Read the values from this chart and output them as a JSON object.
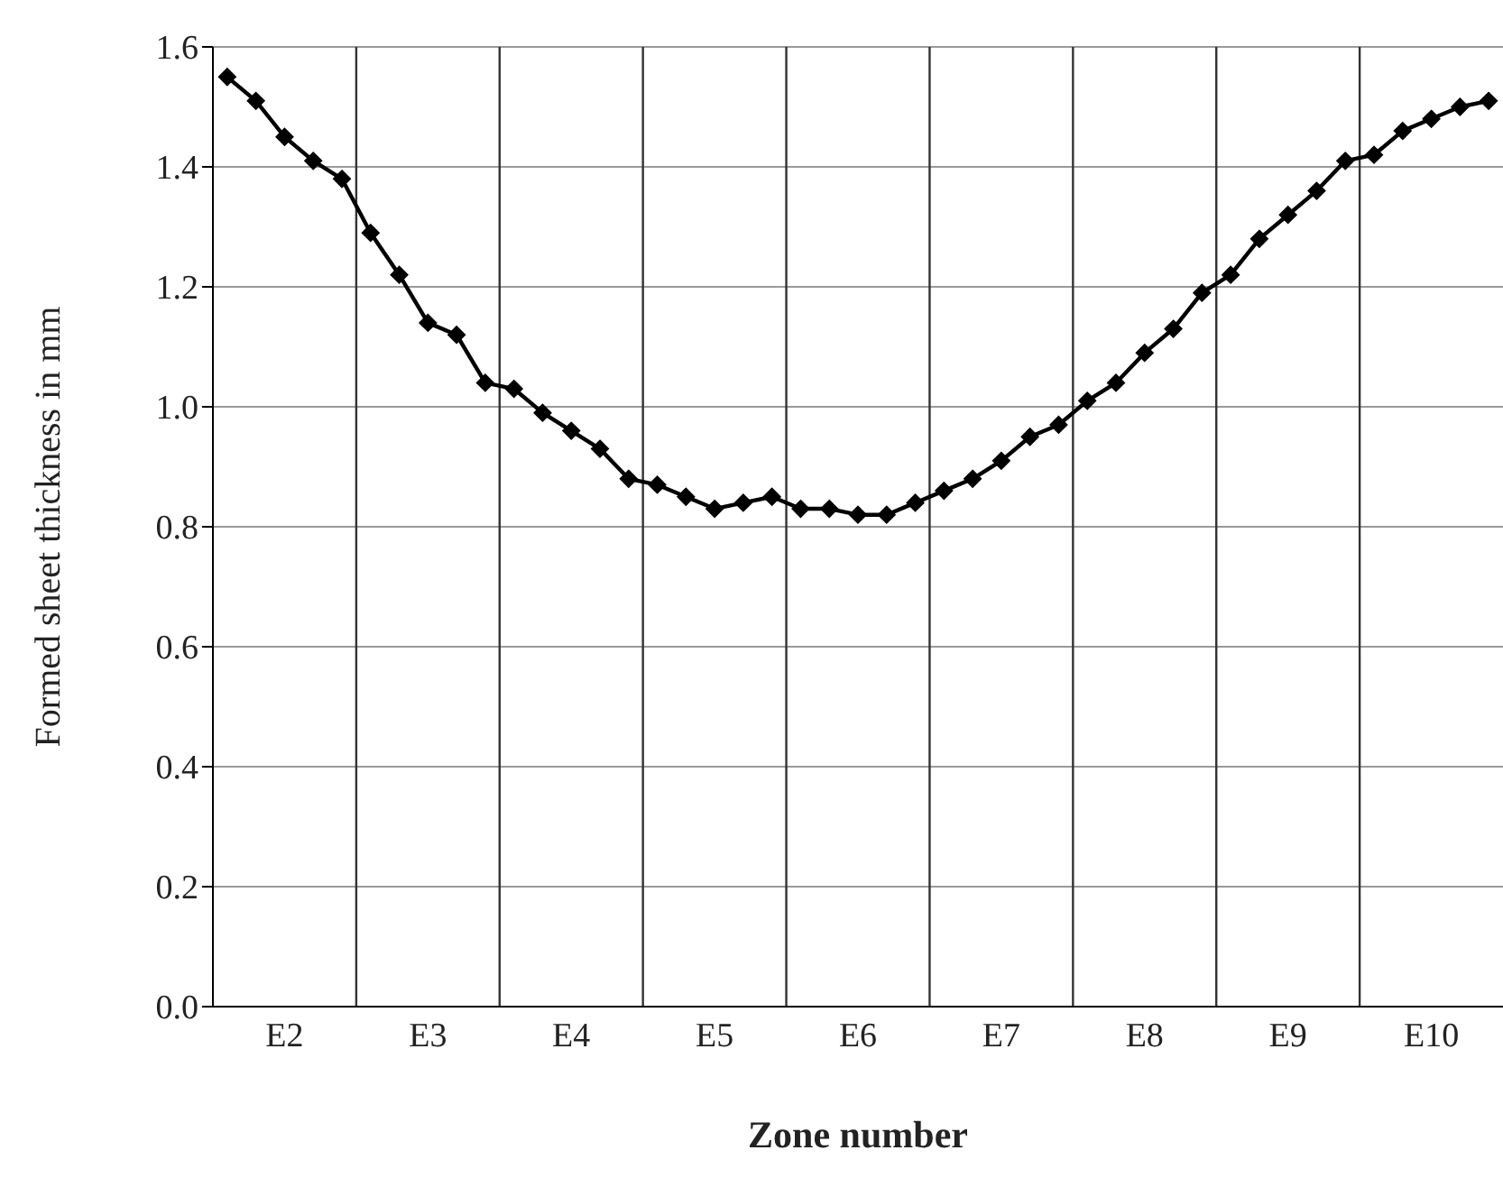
{
  "chart_data": {
    "type": "line",
    "xlabel": "Zone number",
    "ylabel": "Formed sheet thickness in mm",
    "categories": [
      null,
      null,
      "E2",
      null,
      null,
      null,
      null,
      "E3",
      null,
      null,
      null,
      null,
      "E4",
      null,
      null,
      null,
      null,
      "E5",
      null,
      null,
      null,
      null,
      "E6",
      null,
      null,
      null,
      null,
      "E7",
      null,
      null,
      null,
      null,
      "E8",
      null,
      null,
      null,
      null,
      "E9",
      null,
      null,
      null,
      null,
      "E10",
      null,
      null
    ],
    "series": [
      {
        "color": "#000000",
        "values": [
          1.55,
          1.51,
          1.45,
          1.41,
          1.38,
          1.29,
          1.22,
          1.14,
          1.12,
          1.04,
          1.03,
          0.99,
          0.96,
          0.93,
          0.88,
          0.87,
          0.85,
          0.83,
          0.84,
          0.85,
          0.83,
          0.83,
          0.82,
          0.82,
          0.84,
          0.86,
          0.88,
          0.91,
          0.95,
          0.97,
          1.01,
          1.04,
          1.09,
          1.13,
          1.19,
          1.22,
          1.28,
          1.32,
          1.36,
          1.41,
          1.42,
          1.46,
          1.48,
          1.5,
          1.51
        ]
      }
    ],
    "ylim": [
      0,
      1.6
    ],
    "yticks": [
      {
        "value": 0,
        "label": "0.0"
      },
      {
        "value": 0.2,
        "label": "0.2"
      },
      {
        "value": 0.4,
        "label": "0.4"
      },
      {
        "value": 0.6,
        "label": "0.6"
      },
      {
        "value": 0.8,
        "label": "0.8"
      },
      {
        "value": 1,
        "label": "1.0"
      },
      {
        "value": 1.2,
        "label": "1.2"
      },
      {
        "value": 1.4,
        "label": "1.4"
      },
      {
        "value": 1.6,
        "label": "1.6"
      }
    ],
    "grid": true,
    "marker": "diamond",
    "line_style": "solid",
    "legend": false
  }
}
